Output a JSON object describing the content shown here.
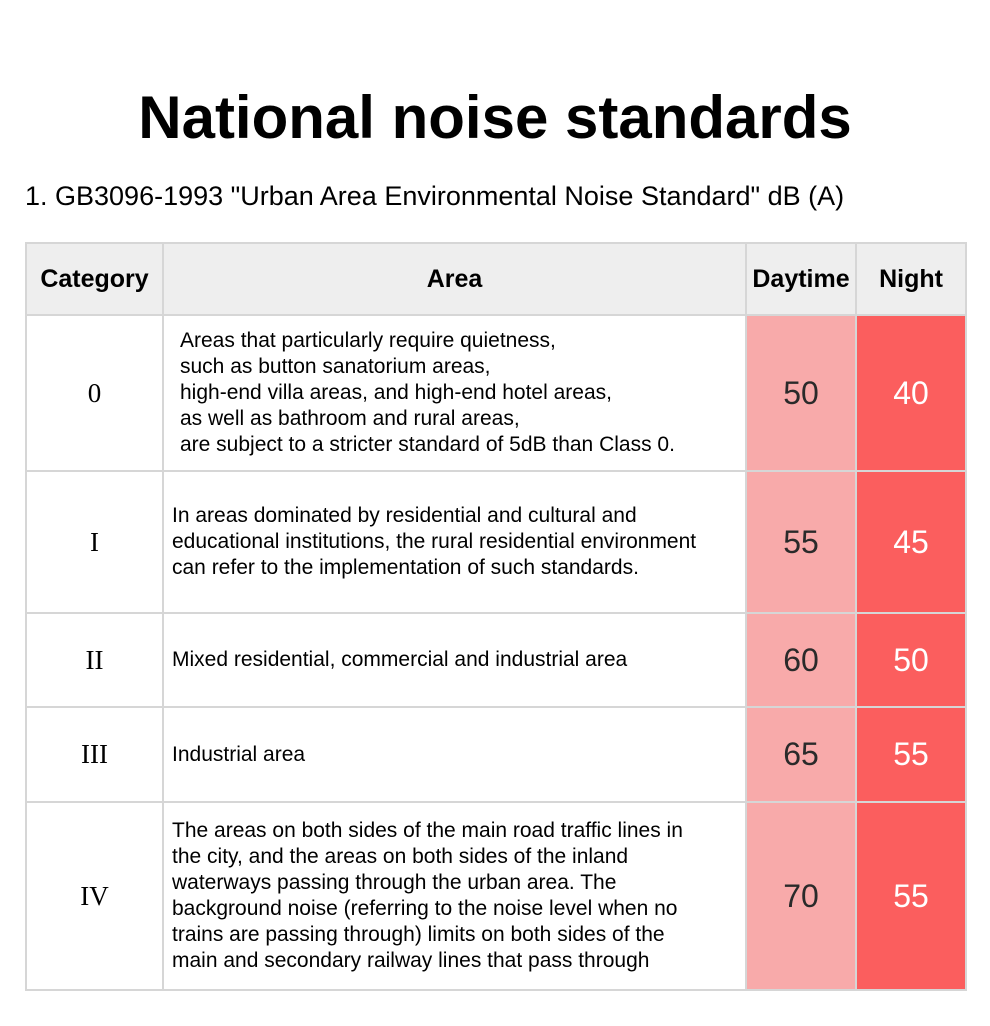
{
  "title": "National noise standards",
  "subtitle": "1. GB3096-1993 \"Urban Area Environmental Noise Standard\" dB (A)",
  "table": {
    "headers": {
      "category": "Category",
      "area": "Area",
      "daytime": "Daytime",
      "night": "Night"
    },
    "rows": [
      {
        "category": "0",
        "area_lines": [
          "Areas that particularly require quietness,",
          "such as button sanatorium areas,",
          "high-end villa areas, and high-end hotel areas,",
          "as well as bathroom and rural areas,",
          "are subject to a stricter standard of 5dB than Class 0."
        ],
        "daytime": "50",
        "night": "40"
      },
      {
        "category": "I",
        "area_lines": [
          "In areas dominated by residential and cultural and",
          "educational institutions, the rural residential environment",
          "can refer to the implementation of such standards."
        ],
        "daytime": "55",
        "night": "45"
      },
      {
        "category": "II",
        "area_lines": [
          "Mixed residential, commercial and industrial area"
        ],
        "daytime": "60",
        "night": "50"
      },
      {
        "category": "III",
        "area_lines": [
          "Industrial area"
        ],
        "daytime": "65",
        "night": "55"
      },
      {
        "category": "IV",
        "area_lines": [
          "The areas on both sides of the main road traffic lines in",
          "the city, and the areas on both sides of the inland",
          "waterways passing through the urban area. The",
          "background noise (referring to the noise level when no",
          "trains are passing through) limits on both sides of the",
          "main and secondary railway lines that pass through"
        ],
        "daytime": "70",
        "night": "55"
      }
    ]
  },
  "colors": {
    "header_bg": "#eeeeee",
    "daytime_bg": "#f8aaaa",
    "night_bg": "#fb5e5e",
    "border": "#d6d6d6"
  }
}
